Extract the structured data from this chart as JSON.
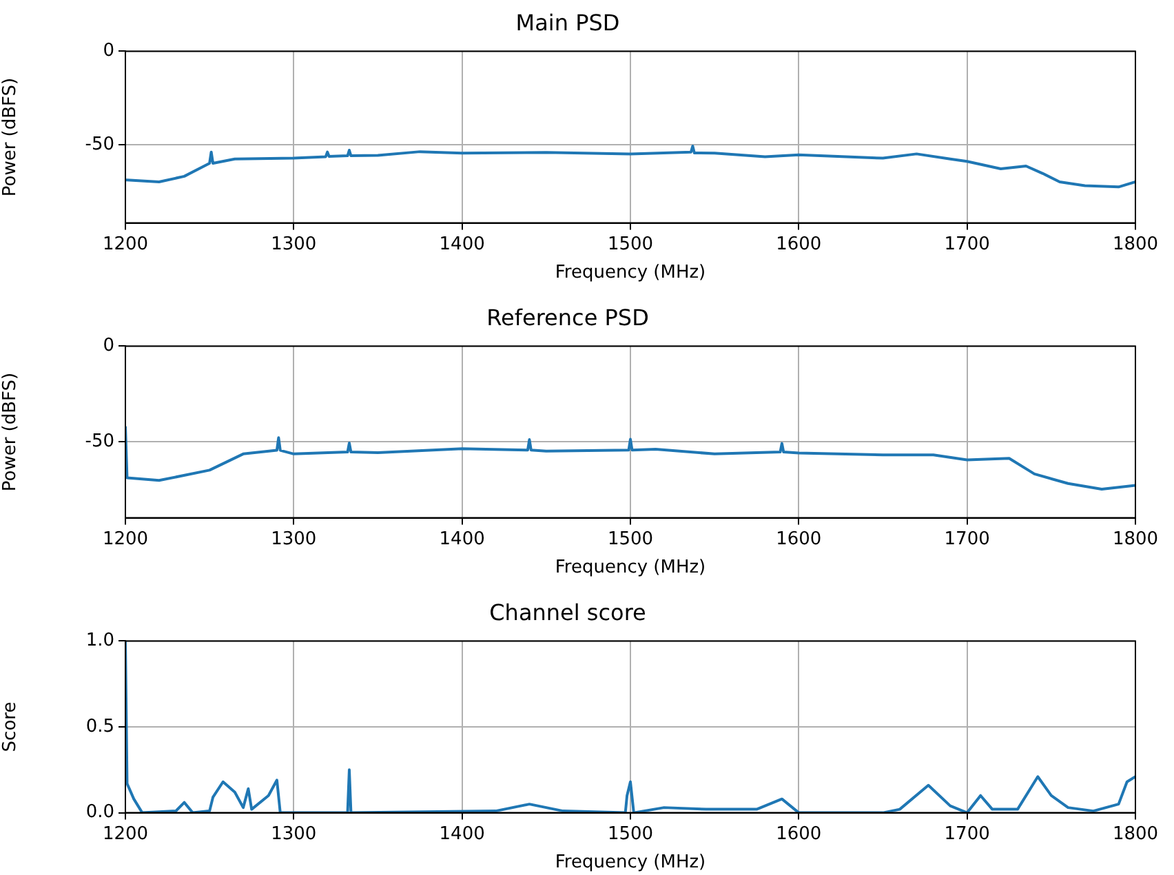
{
  "chart_data": [
    {
      "type": "line",
      "title": "Main PSD",
      "xlabel": "Frequency (MHz)",
      "ylabel": "Power (dBFS)",
      "xlim": [
        1200,
        1800
      ],
      "xticks": [
        1200,
        1300,
        1400,
        1500,
        1600,
        1700,
        1800
      ],
      "ylim": [
        -92,
        0
      ],
      "yticks": [
        -50,
        0
      ],
      "grid": true,
      "x": [
        1200,
        1201,
        1220,
        1235,
        1250,
        1251,
        1252,
        1265,
        1300,
        1319,
        1320,
        1321,
        1332,
        1333,
        1334,
        1350,
        1375,
        1400,
        1450,
        1500,
        1536,
        1537,
        1538,
        1550,
        1580,
        1600,
        1650,
        1670,
        1690,
        1700,
        1720,
        1735,
        1745,
        1755,
        1770,
        1790,
        1800
      ],
      "series": [
        {
          "color": "#1f77b4",
          "values": [
            -69,
            -69,
            -70,
            -67,
            -60,
            -54,
            -60,
            -57.7,
            -57.3,
            -56.5,
            -54,
            -56.3,
            -56,
            -53,
            -56,
            -55.8,
            -53.8,
            -54.6,
            -54.2,
            -55,
            -54,
            -50.8,
            -54.5,
            -54.6,
            -56.5,
            -55.5,
            -57.3,
            -55,
            -57.7,
            -59,
            -63,
            -61.5,
            -65.5,
            -70,
            -72,
            -72.7,
            -70
          ]
        }
      ]
    },
    {
      "type": "line",
      "title": "Reference PSD",
      "xlabel": "Frequency (MHz)",
      "ylabel": "Power (dBFS)",
      "xlim": [
        1200,
        1800
      ],
      "xticks": [
        1200,
        1300,
        1400,
        1500,
        1600,
        1700,
        1800
      ],
      "ylim": [
        -90,
        0
      ],
      "yticks": [
        -50,
        0
      ],
      "grid": true,
      "x": [
        1200,
        1201,
        1220,
        1250,
        1270,
        1290,
        1291,
        1292,
        1300,
        1332,
        1333,
        1334,
        1350,
        1400,
        1439,
        1440,
        1441,
        1450,
        1499,
        1500,
        1501,
        1515,
        1550,
        1589,
        1590,
        1591,
        1600,
        1650,
        1680,
        1700,
        1725,
        1740,
        1760,
        1780,
        1800
      ],
      "series": [
        {
          "color": "#1f77b4",
          "values": [
            -42,
            -69,
            -70.4,
            -65,
            -56.5,
            -54.6,
            -48,
            -54.6,
            -56.5,
            -55.5,
            -50.8,
            -55.5,
            -55.8,
            -53.8,
            -54.5,
            -49,
            -54.5,
            -55,
            -54.5,
            -48.8,
            -54.5,
            -54,
            -56.5,
            -55.5,
            -51,
            -55.5,
            -56,
            -57,
            -57,
            -59.6,
            -58.8,
            -67,
            -72,
            -75,
            -73
          ]
        }
      ]
    },
    {
      "type": "line",
      "title": "Channel score",
      "xlabel": "Frequency (MHz)",
      "ylabel": "Score",
      "xlim": [
        1200,
        1800
      ],
      "xticks": [
        1200,
        1300,
        1400,
        1500,
        1600,
        1700,
        1800
      ],
      "ylim": [
        0,
        1
      ],
      "yticks": [
        {
          "value": 0,
          "label": "0.0"
        },
        0.5,
        {
          "value": 1,
          "label": "1.0"
        }
      ],
      "grid": true,
      "x": [
        1200,
        1201,
        1205,
        1210,
        1230,
        1235,
        1240,
        1250,
        1252,
        1258,
        1265,
        1270,
        1273,
        1275,
        1285,
        1290,
        1292,
        1332,
        1333,
        1334,
        1420,
        1440,
        1460,
        1497,
        1498,
        1500,
        1502,
        1520,
        1545,
        1575,
        1590,
        1600,
        1650,
        1660,
        1677,
        1690,
        1700,
        1708,
        1715,
        1730,
        1742,
        1750,
        1760,
        1775,
        1790,
        1795,
        1800
      ],
      "series": [
        {
          "color": "#1f77b4",
          "values": [
            1,
            0.17,
            0.08,
            0,
            0.01,
            0.06,
            0,
            0.01,
            0.09,
            0.18,
            0.12,
            0.03,
            0.14,
            0.02,
            0.1,
            0.19,
            0,
            0,
            0.25,
            0,
            0.01,
            0.05,
            0.01,
            0,
            0.1,
            0.18,
            0,
            0.03,
            0.02,
            0.02,
            0.08,
            0,
            0,
            0.02,
            0.16,
            0.04,
            0,
            0.1,
            0.02,
            0.02,
            0.21,
            0.1,
            0.03,
            0.01,
            0.05,
            0.18,
            0.21
          ]
        }
      ]
    }
  ]
}
